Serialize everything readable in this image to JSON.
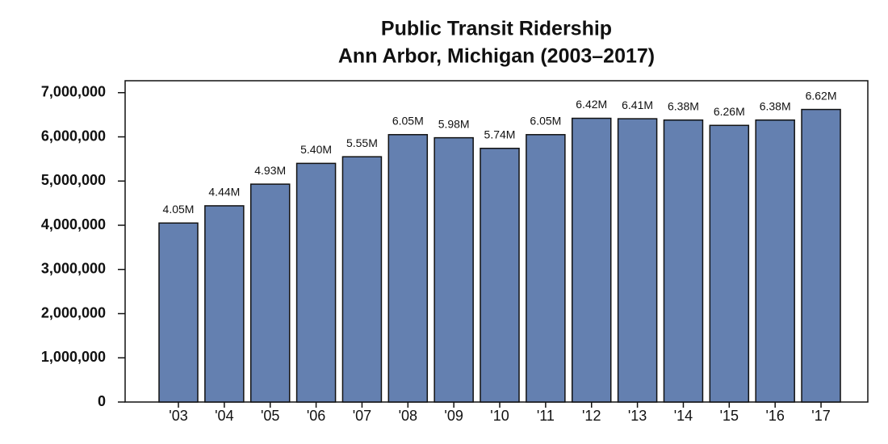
{
  "chart_data": {
    "type": "bar",
    "title": "Public Transit Ridership",
    "subtitle": "Ann Arbor, Michigan (2003–2017)",
    "categories": [
      "'03",
      "'04",
      "'05",
      "'06",
      "'07",
      "'08",
      "'09",
      "'10",
      "'11",
      "'12",
      "'13",
      "'14",
      "'15",
      "'16",
      "'17"
    ],
    "values": [
      4050000,
      4440000,
      4930000,
      5400000,
      5550000,
      6050000,
      5980000,
      5740000,
      6050000,
      6420000,
      6410000,
      6380000,
      6260000,
      6380000,
      6620000
    ],
    "value_labels": [
      "4.05M",
      "4.44M",
      "4.93M",
      "5.40M",
      "5.55M",
      "6.05M",
      "5.98M",
      "5.74M",
      "6.05M",
      "6.42M",
      "6.41M",
      "6.38M",
      "6.26M",
      "6.38M",
      "6.62M"
    ],
    "color": "#6480b0",
    "ylim": [
      0,
      7270000
    ],
    "yticks": [
      0,
      {
        "value": 1000000,
        "label": "1,000,000"
      },
      {
        "value": 2000000,
        "label": "2,000,000"
      },
      {
        "value": 3000000,
        "label": "3,000,000"
      },
      {
        "value": 4000000,
        "label": "4,000,000"
      },
      {
        "value": 5000000,
        "label": "5,000,000"
      },
      {
        "value": 6000000,
        "label": "6,000,000"
      },
      {
        "value": 7000000,
        "label": "7,000,000"
      }
    ],
    "grid": false
  }
}
